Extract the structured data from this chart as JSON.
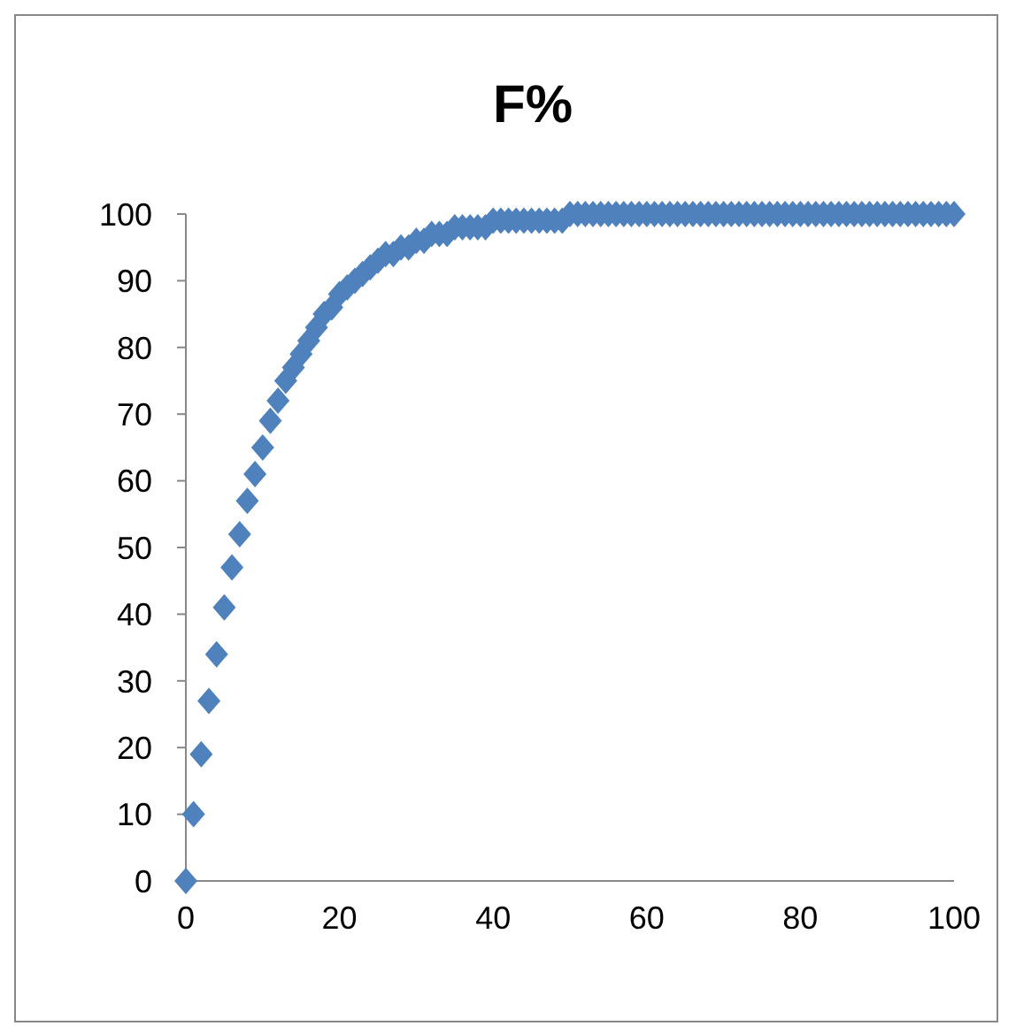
{
  "chart_data": {
    "type": "scatter",
    "title": "F%",
    "x": [
      0,
      1,
      2,
      3,
      4,
      5,
      6,
      7,
      8,
      9,
      10,
      11,
      12,
      13,
      14,
      15,
      16,
      17,
      18,
      19,
      20,
      21,
      22,
      23,
      24,
      25,
      26,
      27,
      28,
      29,
      30,
      31,
      32,
      33,
      34,
      35,
      36,
      37,
      38,
      39,
      40,
      41,
      42,
      43,
      44,
      45,
      46,
      47,
      48,
      49,
      50,
      51,
      52,
      53,
      54,
      55,
      56,
      57,
      58,
      59,
      60,
      61,
      62,
      63,
      64,
      65,
      66,
      67,
      68,
      69,
      70,
      71,
      72,
      73,
      74,
      75,
      76,
      77,
      78,
      79,
      80,
      81,
      82,
      83,
      84,
      85,
      86,
      87,
      88,
      89,
      90,
      91,
      92,
      93,
      94,
      95,
      96,
      97,
      98,
      99,
      100
    ],
    "values": [
      0,
      10,
      19,
      27,
      34,
      41,
      47,
      52,
      57,
      61,
      65,
      69,
      72,
      75,
      77,
      79,
      81,
      83,
      85,
      86,
      88,
      89,
      90,
      91,
      92,
      93,
      94,
      94,
      95,
      95,
      96,
      96,
      97,
      97,
      97,
      98,
      98,
      98,
      98,
      98,
      99,
      99,
      99,
      99,
      99,
      99,
      99,
      99,
      99,
      99,
      100,
      100,
      100,
      100,
      100,
      100,
      100,
      100,
      100,
      100,
      100,
      100,
      100,
      100,
      100,
      100,
      100,
      100,
      100,
      100,
      100,
      100,
      100,
      100,
      100,
      100,
      100,
      100,
      100,
      100,
      100,
      100,
      100,
      100,
      100,
      100,
      100,
      100,
      100,
      100,
      100,
      100,
      100,
      100,
      100,
      100,
      100,
      100,
      100,
      100,
      100
    ],
    "color": "#4f81bd",
    "marker": "diamond",
    "xlim": [
      0,
      100
    ],
    "xticks": [
      0,
      20,
      40,
      60,
      80,
      100
    ],
    "ylim": [
      0,
      100
    ],
    "yticks": [
      0,
      10,
      20,
      30,
      40,
      50,
      60,
      70,
      80,
      90,
      100
    ],
    "grid": false
  }
}
